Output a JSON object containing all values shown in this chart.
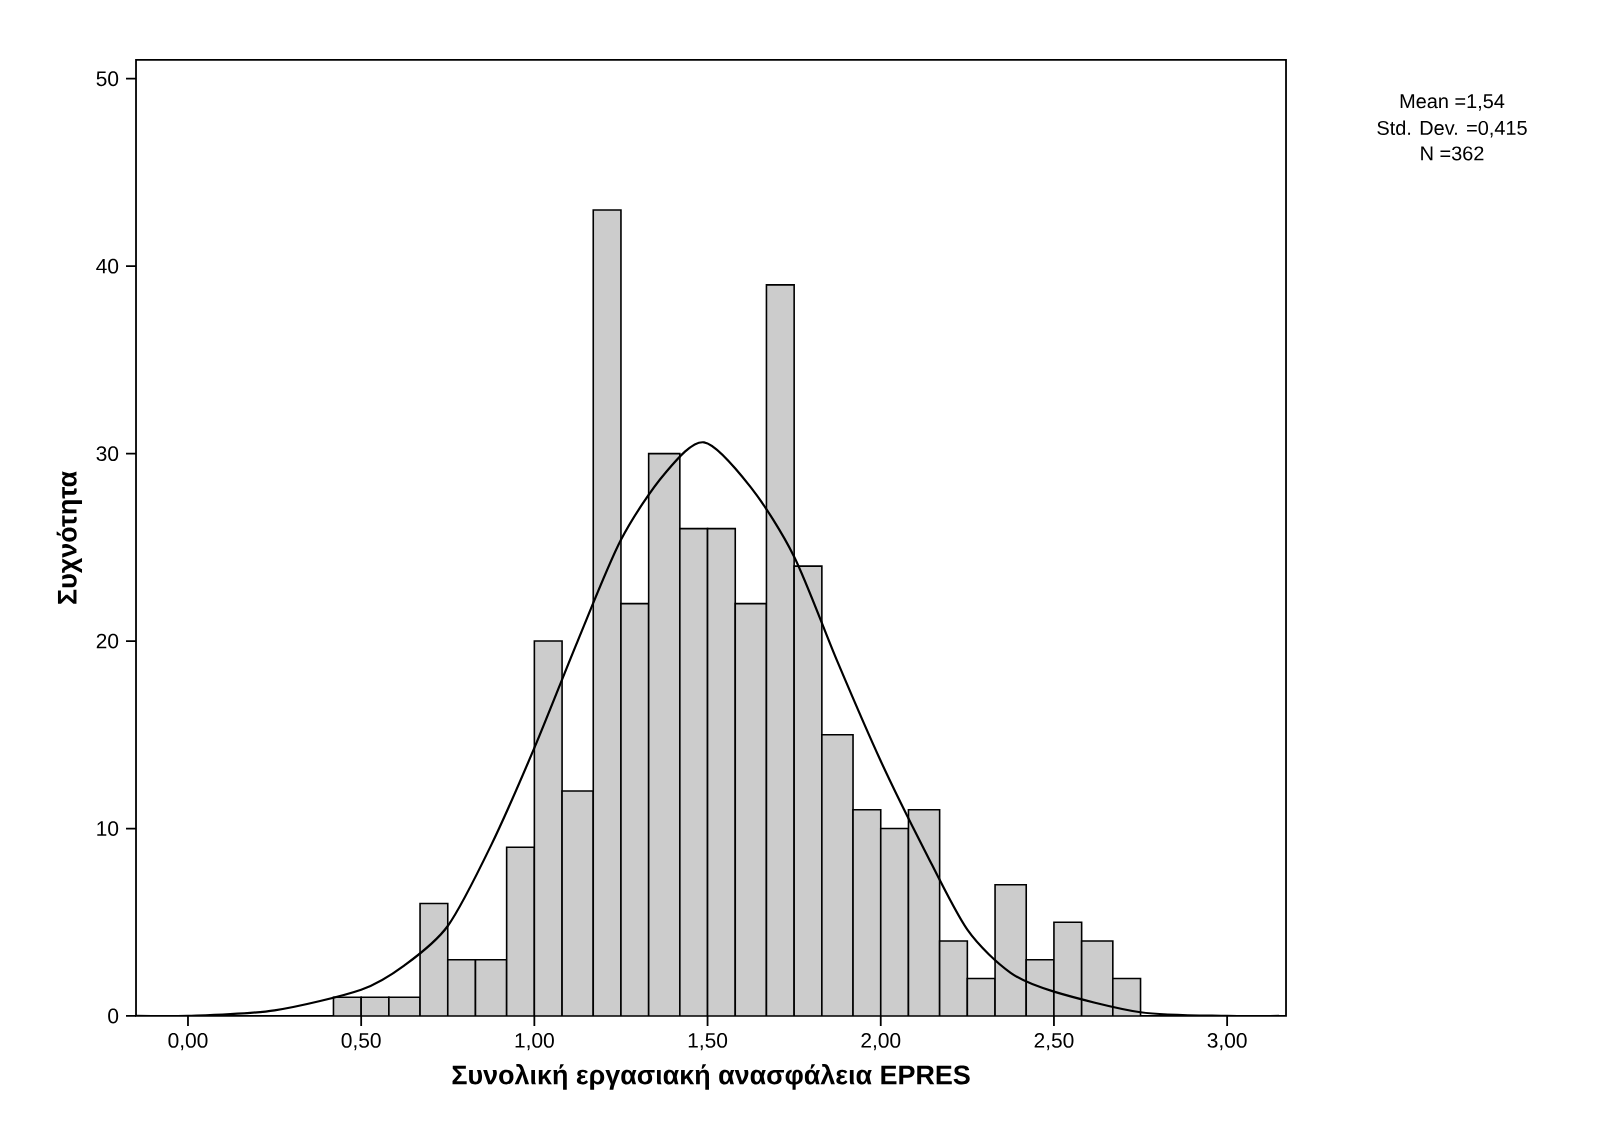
{
  "chart_data": {
    "type": "histogram",
    "xlabel": "Συνολική εργασιακή ανασφάλεια EPRES",
    "ylabel": "Συχνότητα",
    "bins": [
      0.42,
      0.5,
      0.58,
      0.67,
      0.75,
      0.83,
      0.92,
      1.0,
      1.08,
      1.17,
      1.25,
      1.33,
      1.42,
      1.5,
      1.58,
      1.67,
      1.75,
      1.83,
      1.92,
      2.0,
      2.08,
      2.17,
      2.25,
      2.33,
      2.42,
      2.5,
      2.58,
      2.67,
      2.75
    ],
    "values": [
      1,
      1,
      1,
      6,
      3,
      3,
      9,
      20,
      12,
      43,
      22,
      30,
      26,
      26,
      22,
      39,
      24,
      15,
      11,
      10,
      11,
      4,
      2,
      7,
      3,
      5,
      4,
      2
    ],
    "color": "#cccccc",
    "series": [
      {
        "type": "line",
        "color": "#000000",
        "x": [
          -0.15,
          0.0,
          0.25,
          0.5,
          0.625,
          0.75,
          0.875,
          1.0,
          1.125,
          1.25,
          1.375,
          1.49,
          1.625,
          1.75,
          1.875,
          2.0,
          2.125,
          2.25,
          2.375,
          2.5,
          2.75,
          3.0,
          3.15
        ],
        "values": [
          0,
          0,
          0.3,
          1.4,
          2.7,
          4.8,
          9.1,
          14.3,
          20.0,
          25.4,
          28.9,
          30.6,
          28.2,
          24.5,
          18.9,
          13.6,
          8.9,
          4.6,
          2.3,
          1.3,
          0.2,
          0,
          0
        ]
      }
    ],
    "xlim": [
      -0.15,
      3.17
    ],
    "ylim": [
      0,
      51
    ],
    "xticks": [
      {
        "value": 0,
        "label": "0,00"
      },
      {
        "value": 0.5,
        "label": "0,50"
      },
      {
        "value": 1,
        "label": "1,00"
      },
      {
        "value": 1.5,
        "label": "1,50"
      },
      {
        "value": 2,
        "label": "2,00"
      },
      {
        "value": 2.5,
        "label": "2,50"
      },
      {
        "value": 3,
        "label": "3,00"
      }
    ],
    "yticks": [
      0,
      10,
      20,
      30,
      40,
      50
    ],
    "annotations": [
      "Mean =1,54",
      "Std. Dev. =0,415",
      "N =362"
    ]
  }
}
